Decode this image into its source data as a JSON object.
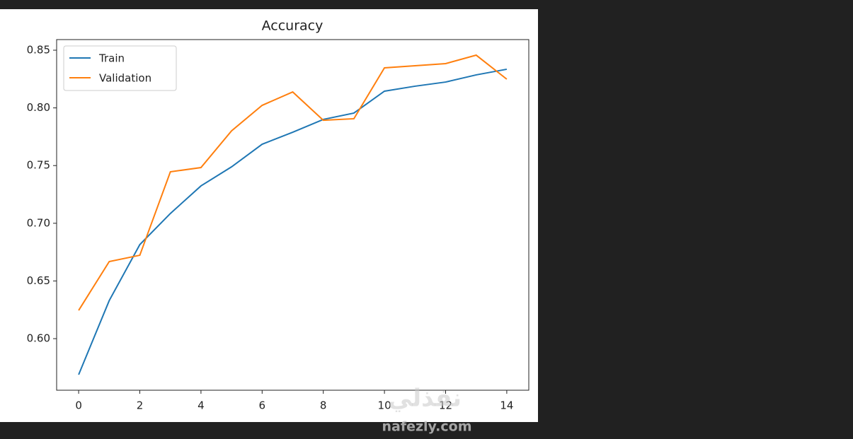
{
  "chart_data": {
    "type": "line",
    "title": "Accuracy",
    "x": [
      0,
      1,
      2,
      3,
      4,
      5,
      6,
      7,
      8,
      9,
      10,
      11,
      12,
      13,
      14
    ],
    "series": [
      {
        "name": "Train",
        "color": "#1f77b4",
        "values": [
          0.5688,
          0.633,
          0.6815,
          0.7085,
          0.7324,
          0.7489,
          0.7685,
          0.7789,
          0.79,
          0.7955,
          0.8145,
          0.8188,
          0.8224,
          0.8286,
          0.8335
        ]
      },
      {
        "name": "Validation",
        "color": "#ff7f0e",
        "values": [
          0.6245,
          0.6668,
          0.6723,
          0.7446,
          0.7483,
          0.7801,
          0.8022,
          0.8138,
          0.7893,
          0.7906,
          0.8347,
          0.8365,
          0.8384,
          0.8457,
          0.8249
        ]
      }
    ],
    "xlim": [
      -0.72,
      14.72
    ],
    "xticks": [
      0,
      2,
      4,
      6,
      8,
      10,
      12,
      14
    ],
    "ylim": [
      0.5553,
      0.8592
    ],
    "yticks": [
      {
        "value": 0.6,
        "label": "0.60"
      },
      0.65,
      {
        "value": 0.7,
        "label": "0.70"
      },
      0.75,
      {
        "value": 0.8,
        "label": "0.80"
      },
      0.85
    ],
    "legend": "upper left",
    "watermark": [
      "نفذلي",
      "nafezly.com"
    ]
  }
}
